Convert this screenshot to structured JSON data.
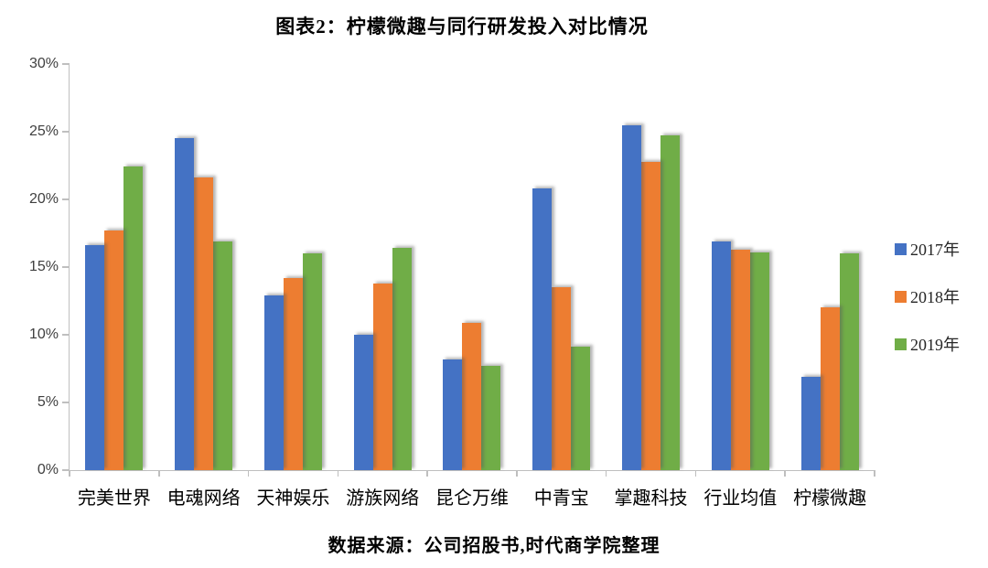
{
  "title": "图表2：柠檬微趣与同行研发投入对比情况",
  "source_note": "数据来源：公司招股书,时代商学院整理",
  "chart_data": {
    "type": "bar",
    "title": "图表2：柠檬微趣与同行研发投入对比情况",
    "categories": [
      "完美世界",
      "电魂网络",
      "天神娱乐",
      "游族网络",
      "昆仑万维",
      "中青宝",
      "掌趣科技",
      "行业均值",
      "柠檬微趣"
    ],
    "series": [
      {
        "name": "2017年",
        "color": "#4472C4",
        "values": [
          16.6,
          24.5,
          12.9,
          10.0,
          8.2,
          20.8,
          25.5,
          16.9,
          6.9
        ]
      },
      {
        "name": "2018年",
        "color": "#ED7D31",
        "values": [
          17.7,
          21.6,
          14.2,
          13.8,
          10.9,
          13.5,
          22.8,
          16.3,
          12.0
        ]
      },
      {
        "name": "2019年",
        "color": "#70AD47",
        "values": [
          22.4,
          16.9,
          16.0,
          16.4,
          7.7,
          9.1,
          24.7,
          16.1,
          16.0
        ]
      }
    ],
    "xlabel": "",
    "ylabel": "",
    "ylim": [
      0,
      30
    ],
    "ytick_step": 5,
    "ytick_labels": [
      "0%",
      "5%",
      "10%",
      "15%",
      "20%",
      "25%",
      "30%"
    ],
    "grid": false,
    "legend_position": "right",
    "axis_color": "#BFBFBF",
    "tick_label_color": "#3f3f3f"
  }
}
